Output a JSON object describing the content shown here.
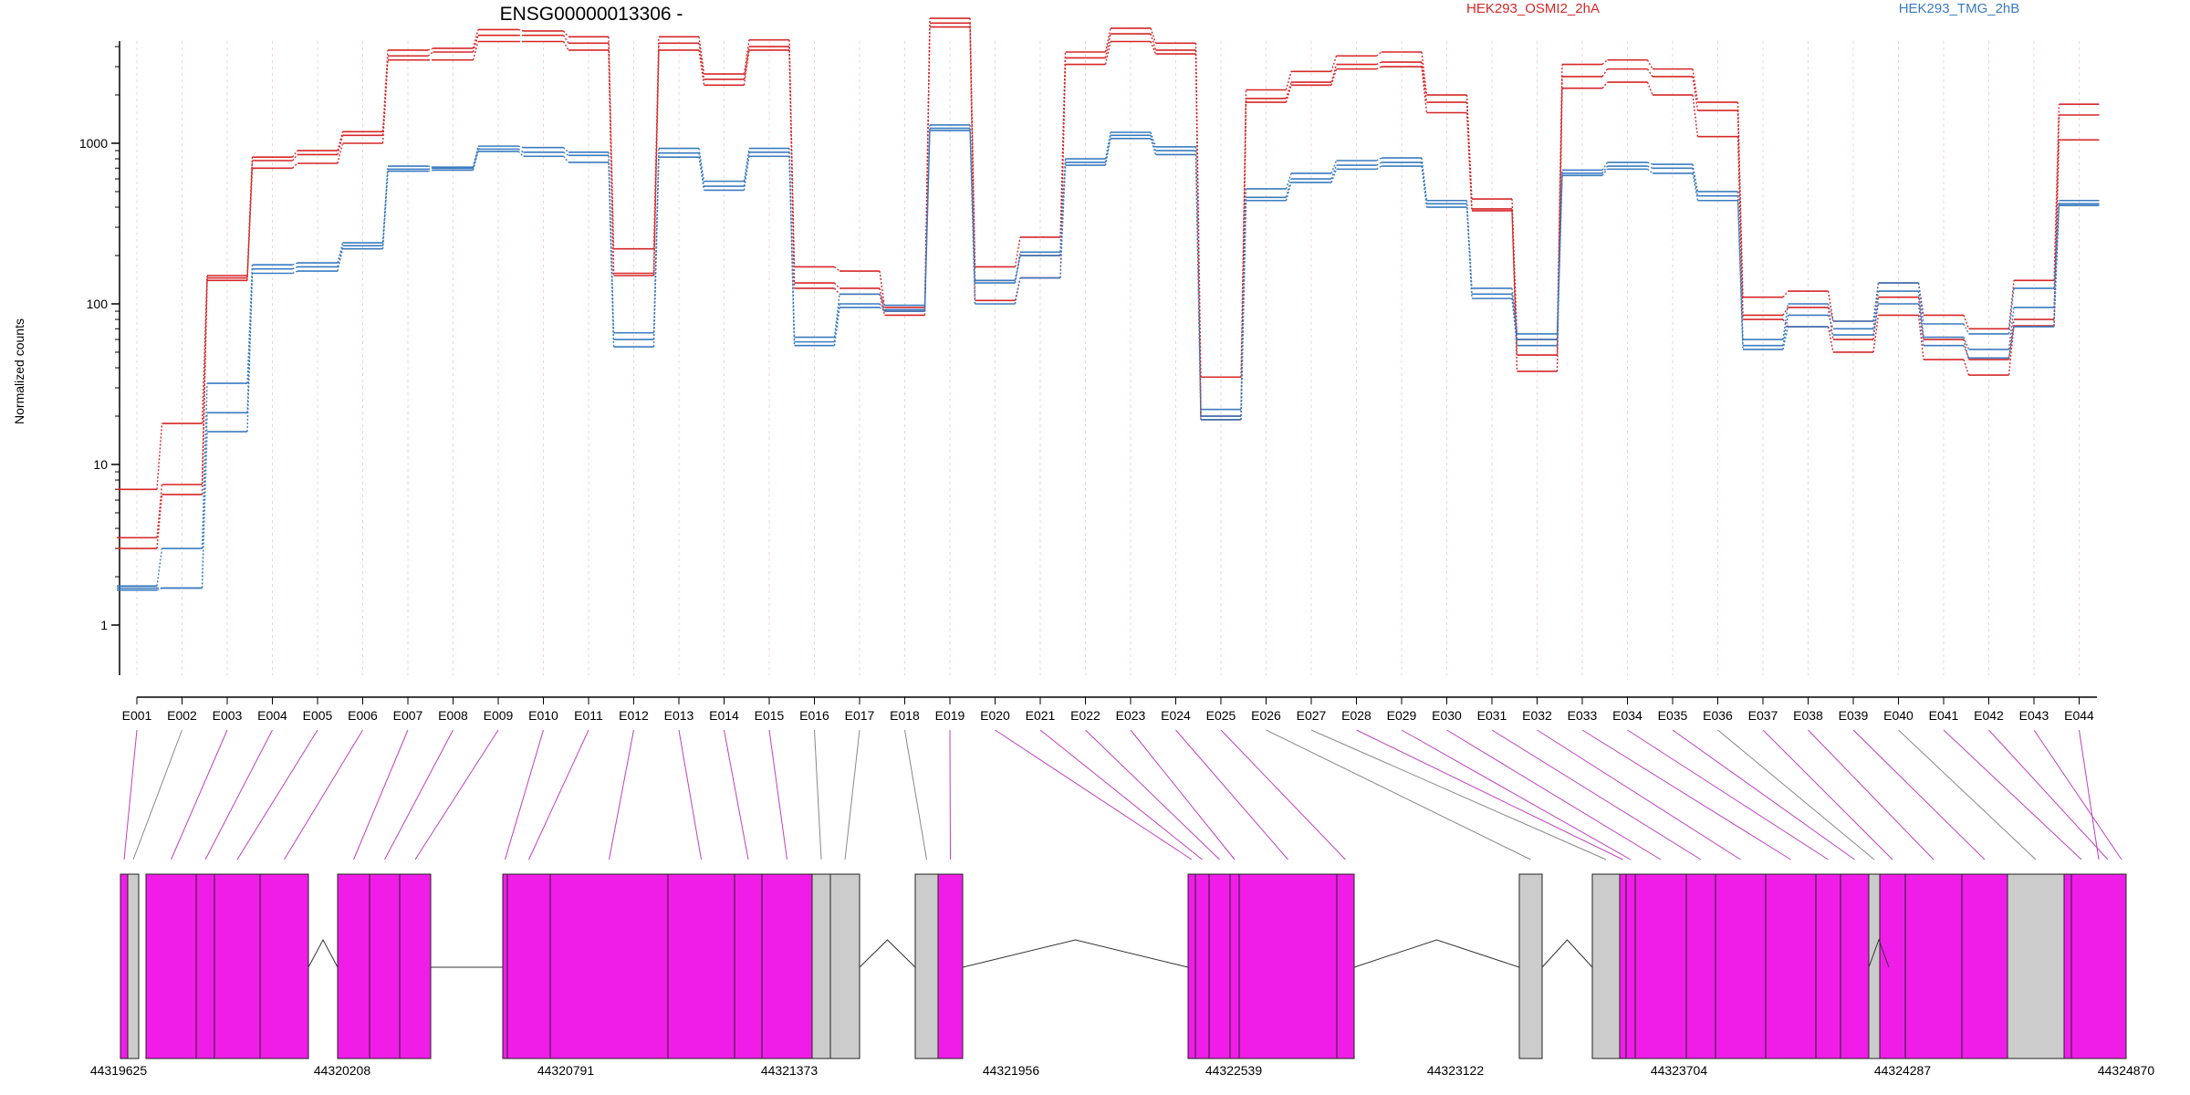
{
  "chart_data": {
    "type": "line",
    "title": "ENSG00000013306 -",
    "xlabel": "",
    "ylabel": "Normalized counts",
    "y_scale": "log",
    "y_ticks": [
      1,
      10,
      100,
      1000
    ],
    "y_tick_labels": [
      "1",
      "10",
      "100",
      "1000"
    ],
    "grid": "vertical dotted lines at exon positions",
    "legend_placement": "top",
    "series_colors": {
      "HEK293_OSMI2_2hA": "#d62728",
      "HEK293_TMG_2hB": "#3a7bbf"
    },
    "categories": [
      "E001",
      "E002",
      "E003",
      "E004",
      "E005",
      "E006",
      "E007",
      "E008",
      "E009",
      "E010",
      "E011",
      "E012",
      "E013",
      "E014",
      "E015",
      "E016",
      "E017",
      "E018",
      "E019",
      "E020",
      "E021",
      "E022",
      "E023",
      "E024",
      "E025",
      "E026",
      "E027",
      "E028",
      "E029",
      "E030",
      "E031",
      "E032",
      "E033",
      "E034",
      "E035",
      "E036",
      "E037",
      "E038",
      "E039",
      "E040",
      "E041",
      "E042",
      "E043",
      "E044"
    ],
    "series": [
      {
        "name": "HEK293_OSMI2_2hA",
        "color": "#d62728",
        "values": [
          7,
          18,
          150,
          820,
          900,
          1180,
          3800,
          3900,
          5100,
          5000,
          4600,
          220,
          4600,
          2700,
          4400,
          170,
          160,
          95,
          6000,
          170,
          260,
          3700,
          5200,
          4200,
          35,
          2150,
          2800,
          3500,
          3700,
          2000,
          450,
          60,
          3100,
          3300,
          2900,
          1800,
          110,
          120,
          78,
          135,
          85,
          70,
          140,
          1750
        ]
      },
      {
        "name": "HEK293_OSMI2_2hA",
        "color": "#d62728",
        "values": [
          3.5,
          7.5,
          145,
          780,
          850,
          1120,
          3500,
          3700,
          4700,
          4700,
          4200,
          155,
          4200,
          2500,
          4000,
          135,
          125,
          90,
          5600,
          140,
          200,
          3400,
          4800,
          3800,
          20,
          1900,
          2400,
          3100,
          3200,
          1800,
          390,
          48,
          2600,
          2900,
          2600,
          1600,
          85,
          95,
          60,
          110,
          60,
          45,
          80,
          1500
        ]
      },
      {
        "name": "HEK293_OSMI2_2hA",
        "color": "#d62728",
        "values": [
          3,
          6.5,
          140,
          700,
          750,
          1000,
          3300,
          3300,
          4300,
          4300,
          3800,
          150,
          3800,
          2300,
          3800,
          125,
          115,
          85,
          5300,
          105,
          145,
          3100,
          4300,
          3600,
          19,
          1800,
          2300,
          2900,
          3000,
          1550,
          380,
          38,
          2200,
          2400,
          2000,
          1100,
          80,
          72,
          50,
          85,
          45,
          36,
          73,
          1050
        ]
      },
      {
        "name": "HEK293_TMG_2hB",
        "color": "#3a7bbf",
        "values": [
          1.75,
          3,
          32,
          175,
          180,
          240,
          720,
          710,
          960,
          940,
          880,
          66,
          930,
          580,
          930,
          62,
          115,
          98,
          1300,
          140,
          210,
          800,
          1170,
          950,
          22,
          520,
          650,
          780,
          810,
          440,
          125,
          65,
          680,
          760,
          740,
          500,
          60,
          100,
          78,
          135,
          75,
          65,
          125,
          440
        ]
      },
      {
        "name": "HEK293_TMG_2hB",
        "color": "#3a7bbf",
        "values": [
          1.7,
          1.7,
          21,
          165,
          170,
          230,
          690,
          700,
          920,
          880,
          840,
          60,
          870,
          540,
          880,
          58,
          100,
          92,
          1240,
          135,
          200,
          760,
          1120,
          900,
          20,
          460,
          600,
          730,
          760,
          420,
          115,
          60,
          650,
          720,
          700,
          470,
          55,
          85,
          70,
          120,
          62,
          52,
          95,
          420
        ]
      },
      {
        "name": "HEK293_TMG_2hB",
        "color": "#3a7bbf",
        "values": [
          1.65,
          1.7,
          16,
          155,
          160,
          220,
          670,
          680,
          890,
          830,
          760,
          54,
          820,
          510,
          830,
          55,
          95,
          90,
          1200,
          100,
          145,
          730,
          1070,
          850,
          19,
          440,
          570,
          690,
          720,
          400,
          108,
          55,
          630,
          690,
          650,
          440,
          52,
          72,
          64,
          100,
          55,
          46,
          72,
          410
        ]
      }
    ],
    "gene_axis": {
      "tick_labels": [
        "44319625",
        "44320208",
        "44320791",
        "44321373",
        "44321956",
        "44322539",
        "44323122",
        "44323704",
        "44324287",
        "44324870"
      ]
    },
    "exon_types": [
      "m",
      "g",
      "m",
      "m",
      "m",
      "m",
      "m",
      "m",
      "m",
      "m",
      "m",
      "m",
      "m",
      "m",
      "m",
      "g",
      "g",
      "g",
      "m",
      "m",
      "m",
      "m",
      "m",
      "m",
      "m",
      "g",
      "g",
      "m",
      "m",
      "m",
      "m",
      "m",
      "m",
      "m",
      "m",
      "g",
      "m",
      "m",
      "m",
      "g",
      "m",
      "m",
      "m",
      "m"
    ],
    "exon_colors": {
      "m": "#f01de8",
      "g": "#cccccc"
    }
  }
}
